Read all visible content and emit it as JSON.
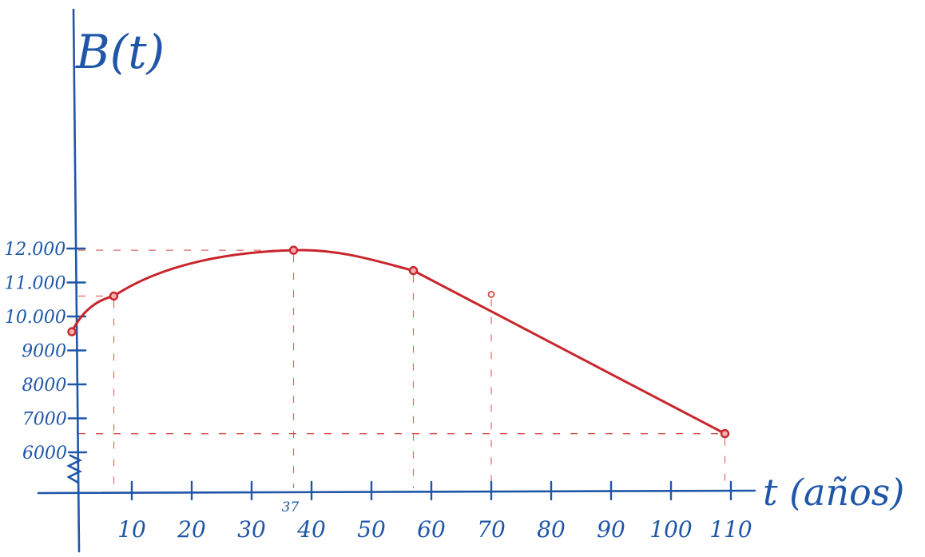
{
  "chart_data": {
    "type": "line",
    "ylabel": "B(t)",
    "xlabel": "t (años)",
    "xlim": [
      0,
      112
    ],
    "ylim": [
      4500,
      12500
    ],
    "axis_break_below": 6000,
    "x_ticks": [
      {
        "value": 10,
        "label": "10"
      },
      {
        "value": 20,
        "label": "20"
      },
      {
        "value": 30,
        "label": "30"
      },
      {
        "value": 37,
        "label": "37",
        "highlight": true
      },
      {
        "value": 40,
        "label": "40"
      },
      {
        "value": 50,
        "label": "50"
      },
      {
        "value": 60,
        "label": "60"
      },
      {
        "value": 70,
        "label": "70"
      },
      {
        "value": 80,
        "label": "80"
      },
      {
        "value": 90,
        "label": "90"
      },
      {
        "value": 100,
        "label": "100"
      },
      {
        "value": 110,
        "label": "110"
      }
    ],
    "y_ticks": [
      {
        "value": 12000,
        "label": "12.000"
      },
      {
        "value": 11000,
        "label": "11.000"
      },
      {
        "value": 10000,
        "label": "10.000"
      },
      {
        "value": 9000,
        "label": "9000"
      },
      {
        "value": 8000,
        "label": "8000"
      },
      {
        "value": 7000,
        "label": "7000"
      },
      {
        "value": 6000,
        "label": "6000"
      }
    ],
    "series": [
      {
        "points": [
          {
            "x": 0,
            "y": 9550
          },
          {
            "x": 7,
            "y": 10600
          },
          {
            "x": 37,
            "y": 11950
          },
          {
            "x": 57,
            "y": 11350
          },
          {
            "x": 109,
            "y": 6550
          }
        ]
      }
    ],
    "extra_point": {
      "x": 70,
      "y": 10650
    },
    "colors": {
      "axes": "#1f56a8",
      "curve": "#c9252c",
      "guides": "#d6453f"
    }
  }
}
